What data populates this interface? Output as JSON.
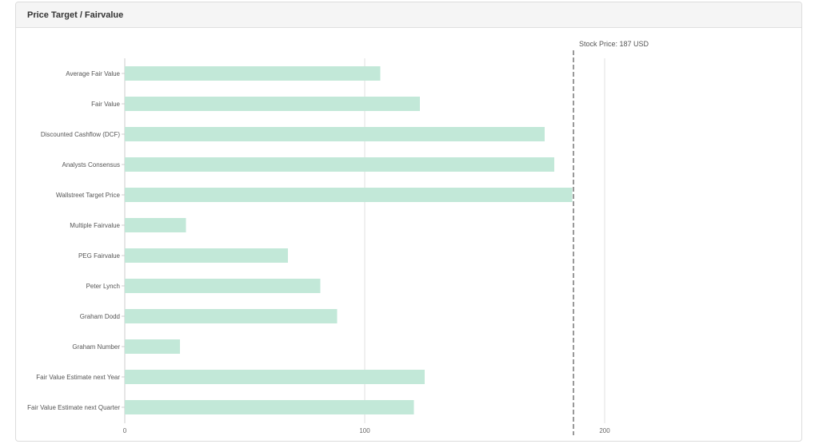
{
  "card": {
    "title": "Price Target / Fairvalue"
  },
  "chart_data": {
    "type": "bar",
    "orientation": "horizontal",
    "title": "",
    "xlabel": "",
    "ylabel": "",
    "categories": [
      "Average Fair Value",
      "Fair Value",
      "Discounted Cashflow (DCF)",
      "Analysts Consensus",
      "Wallstreet Target Price",
      "Multiple Fairvalue",
      "PEG Fairvalue",
      "Peter Lynch",
      "Graham Dodd",
      "Graham Number",
      "Fair Value Estimate next Year",
      "Fair Value Estimate next Quarter"
    ],
    "values": [
      106.5,
      123,
      175,
      179,
      186.5,
      25.5,
      68,
      81.5,
      88.5,
      23,
      125,
      120.5
    ],
    "xlim": [
      0,
      280
    ],
    "xticks": [
      0,
      100,
      200
    ],
    "xtick_labels": [
      "0",
      "100",
      "200"
    ],
    "gridlines": true,
    "reference_line": {
      "value": 187,
      "label": "Stock Price: 187 USD",
      "style": "dashed"
    },
    "colors": {
      "bar": "#c2e8d8",
      "grid": "#e2e2e2",
      "reference_line": "#999999",
      "label_text": "#555555",
      "tick_text": "#666666"
    }
  }
}
